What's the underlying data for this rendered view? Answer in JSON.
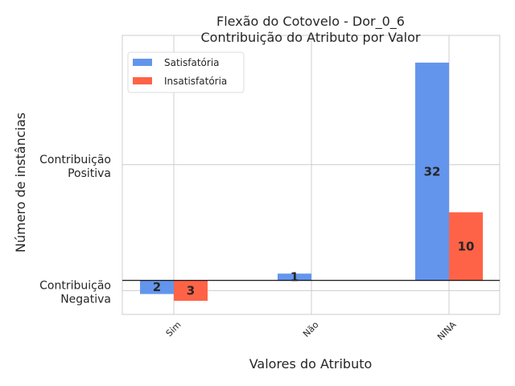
{
  "chart_data": {
    "type": "bar",
    "title_line1": "Flexão do Cotovelo - Dor_0_6",
    "title_line2": "Contribuição do Atributo por Valor",
    "xlabel": "Valores do Atributo",
    "ylabel": "Número de instâncias",
    "categories": [
      "Sim",
      "Não",
      "NINA"
    ],
    "series": [
      {
        "name": "Satisfatória",
        "color": "#6495ED",
        "sign": [
          -1,
          1,
          1
        ],
        "values": [
          2,
          1,
          32
        ]
      },
      {
        "name": "Insatisfatória",
        "color": "#FF6347",
        "sign": [
          -1,
          1,
          1
        ],
        "values": [
          3,
          0,
          10
        ]
      }
    ],
    "y_ticks": [
      {
        "value": 17,
        "line1": "Contribuição",
        "line2": "Positiva"
      },
      {
        "value": -1.5,
        "line1": "Contribuição",
        "line2": "Negativa"
      }
    ],
    "data_labels": [
      {
        "series": 0,
        "category": 0,
        "text": "2"
      },
      {
        "series": 1,
        "category": 0,
        "text": "3"
      },
      {
        "series": 0,
        "category": 1,
        "text": "1"
      },
      {
        "series": 0,
        "category": 2,
        "text": "32"
      },
      {
        "series": 1,
        "category": 2,
        "text": "10"
      }
    ],
    "ylim": [
      -5,
      36
    ],
    "grid": true,
    "legend_position": "top-left"
  }
}
